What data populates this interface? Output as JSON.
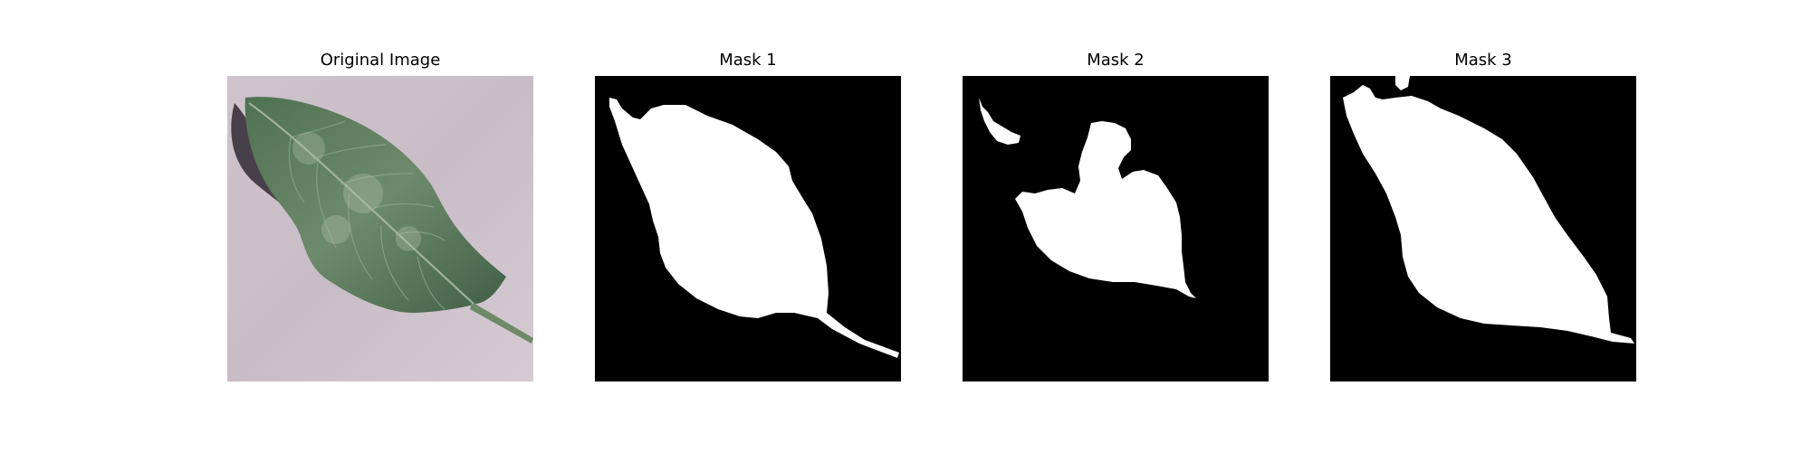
{
  "figure": {
    "panels": [
      {
        "title": "Original Image",
        "kind": "photo",
        "description": "leaf"
      },
      {
        "title": "Mask 1",
        "kind": "mask",
        "description": "binary mask"
      },
      {
        "title": "Mask 2",
        "kind": "mask",
        "description": "binary mask"
      },
      {
        "title": "Mask 3",
        "kind": "mask",
        "description": "binary mask"
      }
    ],
    "colors": {
      "mask_background": "#000000",
      "mask_foreground": "#ffffff",
      "photo_background": "#cbbfc8",
      "leaf_green": "#4d6e51",
      "leaf_light": "#7d957b",
      "shadow": "#2d2630"
    }
  }
}
